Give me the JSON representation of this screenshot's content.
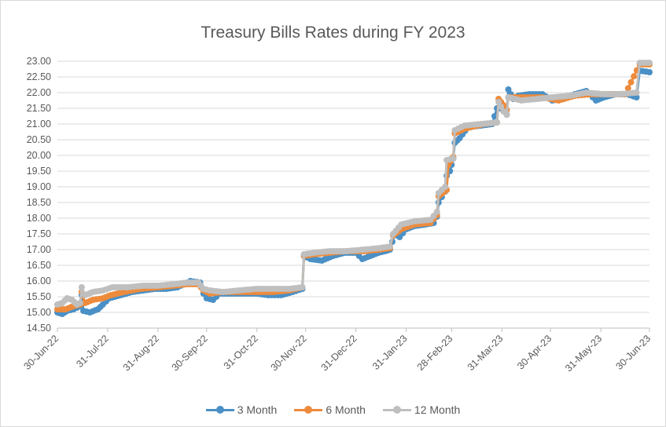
{
  "chart_data": {
    "type": "line",
    "title": "Treasury Bills Rates during FY 2023",
    "xlabel": "",
    "ylabel": "",
    "ylim": [
      14.5,
      23.0
    ],
    "y_ticks": [
      "14.50",
      "15.00",
      "15.50",
      "16.00",
      "16.50",
      "17.00",
      "17.50",
      "18.00",
      "18.50",
      "19.00",
      "19.50",
      "20.00",
      "20.50",
      "21.00",
      "21.50",
      "22.00",
      "22.50",
      "23.00"
    ],
    "x_ticks": [
      "30-Jun-22",
      "31-Jul-22",
      "31-Aug-22",
      "30-Sep-22",
      "31-Oct-22",
      "30-Nov-22",
      "31-Dec-22",
      "31-Jan-23",
      "28-Feb-23",
      "31-Mar-23",
      "30-Apr-23",
      "31-May-23",
      "30-Jun-23"
    ],
    "x_domain": [
      "2022-06-30",
      "2023-06-30"
    ],
    "grid": true,
    "legend_position": "bottom",
    "series": [
      {
        "name": "3 Month",
        "color": "#4A90C6",
        "points": [
          [
            "2022-06-30",
            15.0
          ],
          [
            "2022-07-03",
            14.95
          ],
          [
            "2022-07-06",
            15.05
          ],
          [
            "2022-07-10",
            15.1
          ],
          [
            "2022-07-14",
            15.2
          ],
          [
            "2022-07-15",
            15.55
          ],
          [
            "2022-07-16",
            15.05
          ],
          [
            "2022-07-20",
            15.0
          ],
          [
            "2022-07-25",
            15.1
          ],
          [
            "2022-07-28",
            15.25
          ],
          [
            "2022-08-01",
            15.45
          ],
          [
            "2022-08-08",
            15.55
          ],
          [
            "2022-08-15",
            15.65
          ],
          [
            "2022-08-22",
            15.7
          ],
          [
            "2022-08-29",
            15.75
          ],
          [
            "2022-09-05",
            15.75
          ],
          [
            "2022-09-12",
            15.8
          ],
          [
            "2022-09-16",
            15.9
          ],
          [
            "2022-09-20",
            16.0
          ],
          [
            "2022-09-26",
            15.95
          ],
          [
            "2022-09-28",
            15.6
          ],
          [
            "2022-09-30",
            15.45
          ],
          [
            "2022-10-04",
            15.4
          ],
          [
            "2022-10-08",
            15.6
          ],
          [
            "2022-10-15",
            15.6
          ],
          [
            "2022-10-22",
            15.6
          ],
          [
            "2022-10-31",
            15.6
          ],
          [
            "2022-11-07",
            15.55
          ],
          [
            "2022-11-15",
            15.55
          ],
          [
            "2022-11-22",
            15.65
          ],
          [
            "2022-11-28",
            15.75
          ],
          [
            "2022-11-29",
            16.8
          ],
          [
            "2022-12-03",
            16.7
          ],
          [
            "2022-12-10",
            16.65
          ],
          [
            "2022-12-17",
            16.8
          ],
          [
            "2022-12-24",
            16.9
          ],
          [
            "2022-12-31",
            16.9
          ],
          [
            "2023-01-04",
            16.7
          ],
          [
            "2023-01-09",
            16.8
          ],
          [
            "2023-01-14",
            16.9
          ],
          [
            "2023-01-18",
            16.95
          ],
          [
            "2023-01-21",
            17.0
          ],
          [
            "2023-01-24",
            17.5
          ],
          [
            "2023-01-27",
            17.4
          ],
          [
            "2023-01-31",
            17.65
          ],
          [
            "2023-02-05",
            17.75
          ],
          [
            "2023-02-12",
            17.8
          ],
          [
            "2023-02-17",
            17.85
          ],
          [
            "2023-02-19",
            18.05
          ],
          [
            "2023-02-20",
            18.5
          ],
          [
            "2023-02-24",
            18.85
          ],
          [
            "2023-02-25",
            19.35
          ],
          [
            "2023-02-27",
            19.5
          ],
          [
            "2023-02-28",
            19.7
          ],
          [
            "2023-03-01",
            19.9
          ],
          [
            "2023-03-02",
            20.4
          ],
          [
            "2023-03-05",
            20.55
          ],
          [
            "2023-03-10",
            20.9
          ],
          [
            "2023-03-18",
            20.95
          ],
          [
            "2023-03-25",
            21.0
          ],
          [
            "2023-03-28",
            21.5
          ],
          [
            "2023-04-01",
            21.5
          ],
          [
            "2023-04-03",
            21.3
          ],
          [
            "2023-04-04",
            22.1
          ],
          [
            "2023-04-07",
            21.8
          ],
          [
            "2023-04-10",
            21.9
          ],
          [
            "2023-04-17",
            21.95
          ],
          [
            "2023-04-25",
            21.95
          ],
          [
            "2023-05-01",
            21.75
          ],
          [
            "2023-05-08",
            21.8
          ],
          [
            "2023-05-15",
            21.95
          ],
          [
            "2023-05-22",
            22.05
          ],
          [
            "2023-05-28",
            21.75
          ],
          [
            "2023-06-02",
            21.85
          ],
          [
            "2023-06-09",
            21.95
          ],
          [
            "2023-06-16",
            21.95
          ],
          [
            "2023-06-22",
            21.85
          ],
          [
            "2023-06-24",
            22.7
          ],
          [
            "2023-06-30",
            22.65
          ]
        ]
      },
      {
        "name": "6 Month",
        "color": "#ED8B3C",
        "points": [
          [
            "2022-06-30",
            15.1
          ],
          [
            "2022-07-05",
            15.1
          ],
          [
            "2022-07-10",
            15.2
          ],
          [
            "2022-07-14",
            15.25
          ],
          [
            "2022-07-15",
            15.65
          ],
          [
            "2022-07-17",
            15.3
          ],
          [
            "2022-07-22",
            15.4
          ],
          [
            "2022-07-28",
            15.45
          ],
          [
            "2022-08-02",
            15.55
          ],
          [
            "2022-08-10",
            15.65
          ],
          [
            "2022-08-20",
            15.75
          ],
          [
            "2022-08-31",
            15.8
          ],
          [
            "2022-09-10",
            15.85
          ],
          [
            "2022-09-18",
            15.9
          ],
          [
            "2022-09-25",
            15.9
          ],
          [
            "2022-09-28",
            15.7
          ],
          [
            "2022-10-02",
            15.6
          ],
          [
            "2022-10-10",
            15.65
          ],
          [
            "2022-10-20",
            15.65
          ],
          [
            "2022-10-31",
            15.65
          ],
          [
            "2022-11-10",
            15.65
          ],
          [
            "2022-11-20",
            15.7
          ],
          [
            "2022-11-28",
            15.8
          ],
          [
            "2022-11-29",
            16.8
          ],
          [
            "2022-12-05",
            16.85
          ],
          [
            "2022-12-15",
            16.9
          ],
          [
            "2022-12-25",
            16.95
          ],
          [
            "2023-01-05",
            16.95
          ],
          [
            "2023-01-15",
            17.0
          ],
          [
            "2023-01-21",
            17.05
          ],
          [
            "2023-01-23",
            17.45
          ],
          [
            "2023-01-28",
            17.65
          ],
          [
            "2023-02-05",
            17.8
          ],
          [
            "2023-02-15",
            17.85
          ],
          [
            "2023-02-19",
            18.1
          ],
          [
            "2023-02-20",
            18.7
          ],
          [
            "2023-02-25",
            18.9
          ],
          [
            "2023-02-26",
            19.7
          ],
          [
            "2023-03-01",
            19.95
          ],
          [
            "2023-03-02",
            20.7
          ],
          [
            "2023-03-08",
            20.85
          ],
          [
            "2023-03-20",
            21.0
          ],
          [
            "2023-03-28",
            21.05
          ],
          [
            "2023-03-29",
            21.8
          ],
          [
            "2023-04-01",
            21.6
          ],
          [
            "2023-04-03",
            21.45
          ],
          [
            "2023-04-04",
            21.85
          ],
          [
            "2023-04-15",
            21.85
          ],
          [
            "2023-04-25",
            21.85
          ],
          [
            "2023-05-05",
            21.75
          ],
          [
            "2023-05-15",
            21.9
          ],
          [
            "2023-05-25",
            21.95
          ],
          [
            "2023-06-05",
            21.95
          ],
          [
            "2023-06-15",
            21.95
          ],
          [
            "2023-06-24",
            22.9
          ],
          [
            "2023-06-30",
            22.9
          ]
        ]
      },
      {
        "name": "12 Month",
        "color": "#BFBFBF",
        "points": [
          [
            "2022-06-30",
            15.25
          ],
          [
            "2022-07-03",
            15.3
          ],
          [
            "2022-07-06",
            15.45
          ],
          [
            "2022-07-09",
            15.4
          ],
          [
            "2022-07-12",
            15.25
          ],
          [
            "2022-07-14",
            15.3
          ],
          [
            "2022-07-15",
            15.8
          ],
          [
            "2022-07-17",
            15.55
          ],
          [
            "2022-07-22",
            15.65
          ],
          [
            "2022-07-28",
            15.7
          ],
          [
            "2022-08-03",
            15.8
          ],
          [
            "2022-08-12",
            15.8
          ],
          [
            "2022-08-22",
            15.85
          ],
          [
            "2022-08-31",
            15.85
          ],
          [
            "2022-09-10",
            15.9
          ],
          [
            "2022-09-18",
            15.95
          ],
          [
            "2022-09-25",
            15.95
          ],
          [
            "2022-09-28",
            15.75
          ],
          [
            "2022-10-02",
            15.7
          ],
          [
            "2022-10-10",
            15.65
          ],
          [
            "2022-10-20",
            15.7
          ],
          [
            "2022-10-31",
            15.75
          ],
          [
            "2022-11-10",
            15.75
          ],
          [
            "2022-11-20",
            15.75
          ],
          [
            "2022-11-28",
            15.8
          ],
          [
            "2022-11-29",
            16.85
          ],
          [
            "2022-12-05",
            16.9
          ],
          [
            "2022-12-15",
            16.95
          ],
          [
            "2022-12-25",
            16.95
          ],
          [
            "2023-01-05",
            17.0
          ],
          [
            "2023-01-15",
            17.05
          ],
          [
            "2023-01-21",
            17.1
          ],
          [
            "2023-01-23",
            17.5
          ],
          [
            "2023-01-28",
            17.8
          ],
          [
            "2023-02-05",
            17.9
          ],
          [
            "2023-02-15",
            17.95
          ],
          [
            "2023-02-19",
            18.2
          ],
          [
            "2023-02-20",
            18.8
          ],
          [
            "2023-02-24",
            19.0
          ],
          [
            "2023-02-25",
            19.85
          ],
          [
            "2023-03-01",
            19.9
          ],
          [
            "2023-03-02",
            20.8
          ],
          [
            "2023-03-08",
            20.95
          ],
          [
            "2023-03-18",
            21.0
          ],
          [
            "2023-03-28",
            21.05
          ],
          [
            "2023-03-29",
            21.7
          ],
          [
            "2023-04-01",
            21.4
          ],
          [
            "2023-04-03",
            21.3
          ],
          [
            "2023-04-04",
            21.85
          ],
          [
            "2023-04-12",
            21.75
          ],
          [
            "2023-04-22",
            21.8
          ],
          [
            "2023-05-01",
            21.85
          ],
          [
            "2023-05-12",
            21.9
          ],
          [
            "2023-05-22",
            22.0
          ],
          [
            "2023-06-02",
            21.95
          ],
          [
            "2023-06-12",
            21.95
          ],
          [
            "2023-06-22",
            22.0
          ],
          [
            "2023-06-24",
            22.95
          ],
          [
            "2023-06-30",
            22.95
          ]
        ]
      }
    ]
  }
}
